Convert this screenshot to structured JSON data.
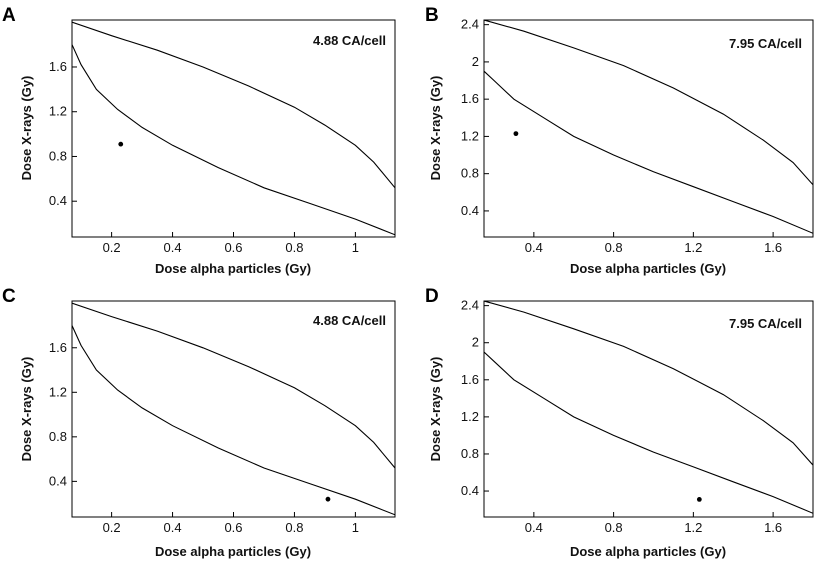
{
  "chart_data": [
    {
      "panel": "A",
      "type": "line",
      "annotation": "4.88 CA/cell",
      "xlabel": "Dose alpha particles (Gy)",
      "ylabel": "Dose X-rays (Gy)",
      "xlim": [
        0.07,
        1.13
      ],
      "ylim": [
        0.08,
        2.02
      ],
      "xticks": [
        0.2,
        0.4,
        0.6,
        0.8,
        1
      ],
      "xtick_labels": [
        "0.2",
        "0.4",
        "0.6",
        "0.8",
        "1"
      ],
      "yticks": [
        0.4,
        0.8,
        1.2,
        1.6
      ],
      "ytick_labels": [
        "0.4",
        "0.8",
        "1.2",
        "1.6"
      ],
      "series": [
        {
          "name": "upper boundary",
          "x": [
            0.07,
            0.2,
            0.35,
            0.5,
            0.65,
            0.8,
            0.9,
            1.0,
            1.06,
            1.13
          ],
          "y": [
            2.0,
            1.88,
            1.75,
            1.6,
            1.43,
            1.24,
            1.08,
            0.9,
            0.75,
            0.52
          ]
        },
        {
          "name": "lower boundary",
          "x": [
            0.07,
            0.1,
            0.15,
            0.22,
            0.3,
            0.4,
            0.55,
            0.7,
            0.85,
            1.0,
            1.13
          ],
          "y": [
            1.8,
            1.62,
            1.4,
            1.22,
            1.06,
            0.9,
            0.7,
            0.52,
            0.38,
            0.24,
            0.1
          ]
        },
        {
          "name": "point",
          "type": "scatter",
          "x": [
            0.23
          ],
          "y": [
            0.91
          ]
        }
      ]
    },
    {
      "panel": "B",
      "type": "line",
      "annotation": "7.95 CA/cell",
      "xlabel": "Dose alpha particles (Gy)",
      "ylabel": "Dose X-rays (Gy)",
      "xlim": [
        0.15,
        1.8
      ],
      "ylim": [
        0.12,
        2.45
      ],
      "xticks": [
        0.4,
        0.8,
        1.2,
        1.6
      ],
      "xtick_labels": [
        "0.4",
        "0.8",
        "1.2",
        "1.6"
      ],
      "yticks": [
        0.4,
        0.8,
        1.2,
        1.6,
        2.0,
        2.4
      ],
      "ytick_labels": [
        "0.4",
        "0.8",
        "1.2",
        "1.6",
        "2",
        "2.4"
      ],
      "series": [
        {
          "name": "upper boundary",
          "x": [
            0.15,
            0.35,
            0.6,
            0.85,
            1.1,
            1.35,
            1.55,
            1.7,
            1.8
          ],
          "y": [
            2.45,
            2.33,
            2.15,
            1.96,
            1.72,
            1.44,
            1.16,
            0.92,
            0.68
          ]
        },
        {
          "name": "lower boundary",
          "x": [
            0.15,
            0.2,
            0.3,
            0.45,
            0.6,
            0.8,
            1.0,
            1.2,
            1.4,
            1.6,
            1.8
          ],
          "y": [
            1.9,
            1.8,
            1.6,
            1.4,
            1.2,
            1.0,
            0.82,
            0.66,
            0.5,
            0.34,
            0.16
          ]
        },
        {
          "name": "point",
          "type": "scatter",
          "x": [
            0.31
          ],
          "y": [
            1.23
          ]
        }
      ]
    },
    {
      "panel": "C",
      "type": "line",
      "annotation": "4.88 CA/cell",
      "xlabel": "Dose alpha particles (Gy)",
      "ylabel": "Dose X-rays (Gy)",
      "xlim": [
        0.07,
        1.13
      ],
      "ylim": [
        0.08,
        2.02
      ],
      "xticks": [
        0.2,
        0.4,
        0.6,
        0.8,
        1
      ],
      "xtick_labels": [
        "0.2",
        "0.4",
        "0.6",
        "0.8",
        "1"
      ],
      "yticks": [
        0.4,
        0.8,
        1.2,
        1.6
      ],
      "ytick_labels": [
        "0.4",
        "0.8",
        "1.2",
        "1.6"
      ],
      "series": [
        {
          "name": "upper boundary",
          "x": [
            0.07,
            0.2,
            0.35,
            0.5,
            0.65,
            0.8,
            0.9,
            1.0,
            1.06,
            1.13
          ],
          "y": [
            2.0,
            1.88,
            1.75,
            1.6,
            1.43,
            1.24,
            1.08,
            0.9,
            0.75,
            0.52
          ]
        },
        {
          "name": "lower boundary",
          "x": [
            0.07,
            0.1,
            0.15,
            0.22,
            0.3,
            0.4,
            0.55,
            0.7,
            0.85,
            1.0,
            1.13
          ],
          "y": [
            1.8,
            1.62,
            1.4,
            1.22,
            1.06,
            0.9,
            0.7,
            0.52,
            0.38,
            0.24,
            0.1
          ]
        },
        {
          "name": "point",
          "type": "scatter",
          "x": [
            0.91
          ],
          "y": [
            0.24
          ]
        }
      ]
    },
    {
      "panel": "D",
      "type": "line",
      "annotation": "7.95 CA/cell",
      "xlabel": "Dose alpha particles (Gy)",
      "ylabel": "Dose X-rays (Gy)",
      "xlim": [
        0.15,
        1.8
      ],
      "ylim": [
        0.12,
        2.45
      ],
      "xticks": [
        0.4,
        0.8,
        1.2,
        1.6
      ],
      "xtick_labels": [
        "0.4",
        "0.8",
        "1.2",
        "1.6"
      ],
      "yticks": [
        0.4,
        0.8,
        1.2,
        1.6,
        2.0,
        2.4
      ],
      "ytick_labels": [
        "0.4",
        "0.8",
        "1.2",
        "1.6",
        "2",
        "2.4"
      ],
      "series": [
        {
          "name": "upper boundary",
          "x": [
            0.15,
            0.35,
            0.6,
            0.85,
            1.1,
            1.35,
            1.55,
            1.7,
            1.8
          ],
          "y": [
            2.45,
            2.33,
            2.15,
            1.96,
            1.72,
            1.44,
            1.16,
            0.92,
            0.68
          ]
        },
        {
          "name": "lower boundary",
          "x": [
            0.15,
            0.2,
            0.3,
            0.45,
            0.6,
            0.8,
            1.0,
            1.2,
            1.4,
            1.6,
            1.8
          ],
          "y": [
            1.9,
            1.8,
            1.6,
            1.4,
            1.2,
            1.0,
            0.82,
            0.66,
            0.5,
            0.34,
            0.16
          ]
        },
        {
          "name": "point",
          "type": "scatter",
          "x": [
            1.23
          ],
          "y": [
            0.31
          ]
        }
      ]
    }
  ]
}
